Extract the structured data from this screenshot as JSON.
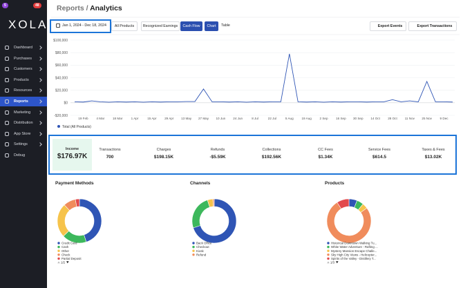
{
  "sidebar": {
    "badges": [
      "5",
      "48"
    ],
    "logo": "XOLA",
    "items": [
      "Dashboard",
      "Purchases",
      "Customers",
      "Products",
      "Resources",
      "Reports",
      "Marketing",
      "Distribution",
      "App Store",
      "Settings",
      "Debug"
    ],
    "active": 5
  },
  "header": {
    "section": "Reports",
    "separator": "/",
    "title": "Analytics"
  },
  "toolbar": {
    "date_range": "Jan 1, 2024 - Dec 18, 2024",
    "product_filter": "All Products",
    "modes": [
      "Recognized Earnings",
      "Cash Flow"
    ],
    "active_mode": 1,
    "views": [
      "Chart",
      "Table"
    ],
    "active_view": 0,
    "exports": [
      "Export Events",
      "Export Transactions"
    ]
  },
  "stats": [
    {
      "label": "Income",
      "value": "$176.97K"
    },
    {
      "label": "Transactions",
      "value": "700"
    },
    {
      "label": "Charges",
      "value": "$198.15K"
    },
    {
      "label": "Refunds",
      "value": "-$5.59K"
    },
    {
      "label": "Collections",
      "value": "$192.56K"
    },
    {
      "label": "CC Fees",
      "value": "$1.34K"
    },
    {
      "label": "Service Fees",
      "value": "$614.5"
    },
    {
      "label": "Taxes & Fees",
      "value": "$13.02K"
    }
  ],
  "chart_data": [
    {
      "type": "line",
      "categories": [
        null,
        "19 Feb",
        null,
        "4 Mar",
        null,
        "18 Mar",
        null,
        "1 Apr",
        null,
        "15 Apr",
        null,
        "29 Apr",
        null,
        "13 May",
        null,
        "27 May",
        null,
        "10 Jun",
        null,
        "24 Jun",
        null,
        "8 Jul",
        null,
        "22 Jul",
        null,
        "5 Aug",
        null,
        "19 Aug",
        null,
        "2 Sep",
        null,
        "16 Sep",
        null,
        "30 Sep",
        null,
        "14 Oct",
        null,
        "28 Oct",
        null,
        "11 Nov",
        null,
        "25 Nov",
        null,
        "9 Dec",
        null
      ],
      "series": [
        {
          "name": "Total (All Products)",
          "color": "#2f55b5",
          "values": [
            1500,
            1200,
            3000,
            1500,
            1000,
            1500,
            1200,
            1500,
            1000,
            1500,
            1200,
            1500,
            1500,
            2000,
            2000,
            22000,
            1500,
            1500,
            1200,
            1500,
            1000,
            1500,
            1200,
            1500,
            1500,
            78000,
            1500,
            1200,
            1500,
            1000,
            1500,
            1200,
            1500,
            1500,
            1200,
            1500,
            1500,
            5000,
            1500,
            3000,
            1500,
            34000,
            1500,
            1500,
            1200
          ]
        }
      ],
      "ylim": [
        -20000,
        100000
      ],
      "yticks": [
        {
          "value": 100000,
          "label": "$100,000"
        },
        {
          "value": 80000,
          "label": "$80,000"
        },
        {
          "value": 60000,
          "label": "$60,000"
        },
        {
          "value": 40000,
          "label": "$40,000"
        },
        {
          "value": 20000,
          "label": "$20,000"
        },
        {
          "value": 0,
          "label": "$0"
        },
        {
          "value": -20000,
          "label": "-$20,000"
        }
      ],
      "grid": true
    },
    {
      "type": "donut",
      "title": "Payment Methods",
      "categories": [
        "Credit Card",
        "Cash",
        "Other",
        "Check",
        "Partial Deposit"
      ],
      "values": [
        45,
        18,
        25,
        9,
        3
      ],
      "colors": [
        "#2f55b5",
        "#3db85c",
        "#f6c34b",
        "#f08c5c",
        "#e24a4d"
      ],
      "pager": "1/2"
    },
    {
      "type": "donut",
      "title": "Channels",
      "categories": [
        "Back Office",
        "Checkout",
        "Kiosk",
        "Refund"
      ],
      "values": [
        70,
        25,
        4,
        1
      ],
      "colors": [
        "#2f55b5",
        "#3db85c",
        "#f6c34b",
        "#f08c5c"
      ]
    },
    {
      "type": "donut",
      "title": "Products",
      "categories": [
        "Historical Downtown Walking Tu...",
        "White Water Adventure - Rafting ...",
        "Mystery Mansion Escape Challe...",
        "Sky High City Views - Helicopter...",
        "Spirits of the Valley - Distillery T..."
      ],
      "values": [
        6,
        5,
        4,
        76,
        9
      ],
      "colors": [
        "#2f55b5",
        "#3db85c",
        "#f6c34b",
        "#f08c5c",
        "#e24a4d"
      ],
      "pager": "1/3"
    }
  ]
}
